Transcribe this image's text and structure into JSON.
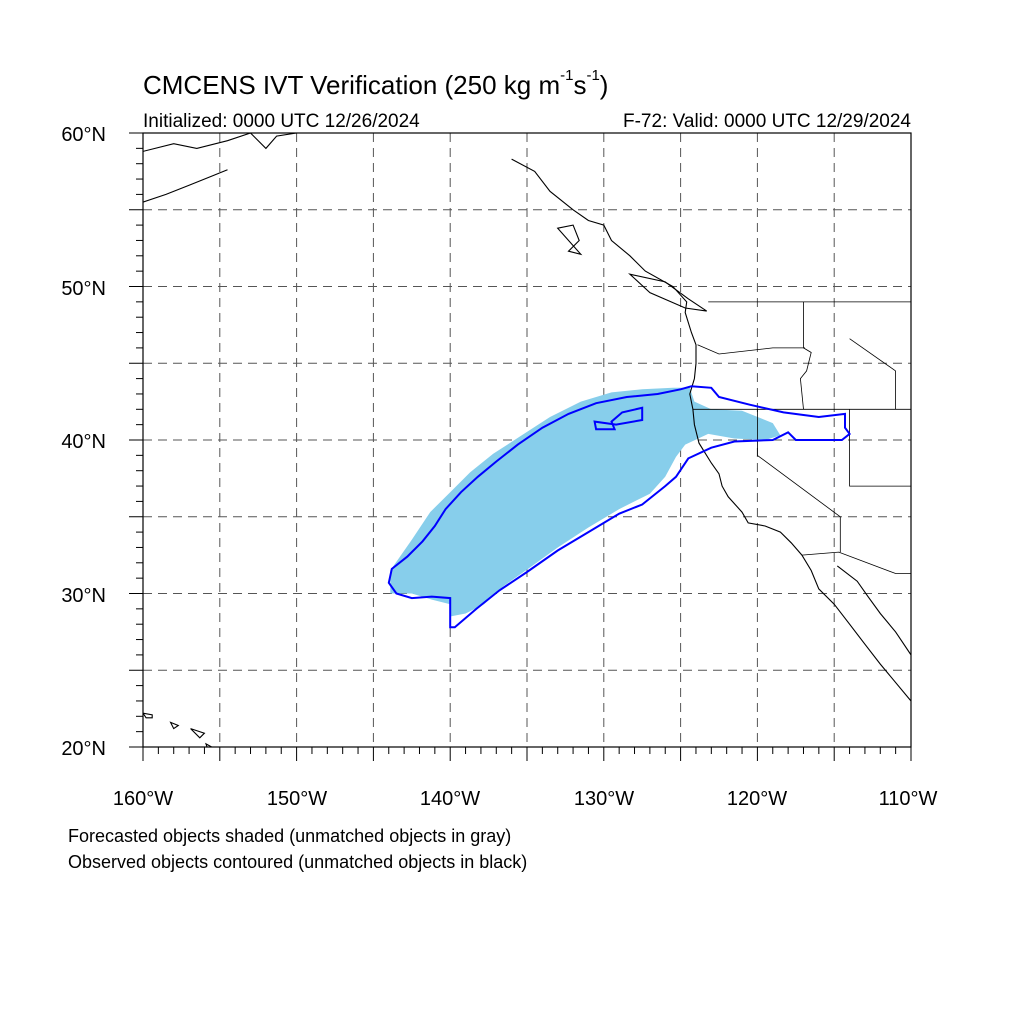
{
  "title": {
    "prefix": "CMCENS IVT Verification (250 kg m",
    "exp1": "-1",
    "mid": "s",
    "exp2": "-1",
    "suffix": ")"
  },
  "initialized": "Initialized: 0000 UTC 12/26/2024",
  "valid": "F-72: Valid: 0000 UTC 12/29/2024",
  "lat_labels": [
    "60°N",
    "50°N",
    "40°N",
    "30°N",
    "20°N"
  ],
  "lon_labels": [
    "160°W",
    "150°W",
    "140°W",
    "130°W",
    "120°W",
    "110°W"
  ],
  "legend": {
    "forecast": "Forecasted objects shaded (unmatched objects in gray)",
    "observed": "Observed objects contoured (unmatched objects in black)"
  },
  "map": {
    "lon_range": [
      -160,
      -110
    ],
    "lat_range": [
      20,
      60
    ],
    "grid_step_deg": 5,
    "colors": {
      "forecast_fill": "#87ceeb",
      "observed_contour": "#0000ff",
      "coastline": "#000000",
      "grid": "#555555"
    }
  },
  "objects": {
    "forecast": {
      "label": "matched forecast IVT object",
      "polygon": [
        [
          -143.9,
          30.0
        ],
        [
          -143.9,
          31.5
        ],
        [
          -142.5,
          33.5
        ],
        [
          -141.3,
          35.3
        ],
        [
          -140.0,
          36.6
        ],
        [
          -138.7,
          37.9
        ],
        [
          -137.2,
          39.1
        ],
        [
          -135.5,
          40.2
        ],
        [
          -133.5,
          41.5
        ],
        [
          -131.5,
          42.5
        ],
        [
          -129.5,
          43.1
        ],
        [
          -127.5,
          43.3
        ],
        [
          -125.5,
          43.4
        ],
        [
          -124.4,
          43.4
        ],
        [
          -124.1,
          42.5
        ],
        [
          -123.0,
          42.0
        ],
        [
          -121.0,
          41.9
        ],
        [
          -119.0,
          41.1
        ],
        [
          -118.5,
          40.3
        ],
        [
          -119.5,
          40.0
        ],
        [
          -121.5,
          40.1
        ],
        [
          -123.2,
          40.4
        ],
        [
          -124.7,
          39.7
        ],
        [
          -125.3,
          38.9
        ],
        [
          -126.0,
          37.6
        ],
        [
          -127.0,
          36.5
        ],
        [
          -129.0,
          35.5
        ],
        [
          -131.0,
          34.3
        ],
        [
          -133.0,
          33.0
        ],
        [
          -134.8,
          31.7
        ],
        [
          -136.5,
          30.5
        ],
        [
          -137.8,
          29.3
        ],
        [
          -139.0,
          28.7
        ],
        [
          -140.0,
          28.5
        ],
        [
          -140.0,
          29.3
        ],
        [
          -141.2,
          29.6
        ],
        [
          -142.5,
          30.0
        ]
      ]
    },
    "observed": {
      "label": "matched observed IVT object",
      "polygon": [
        [
          -144.0,
          30.7
        ],
        [
          -143.8,
          31.6
        ],
        [
          -142.8,
          32.4
        ],
        [
          -141.8,
          33.4
        ],
        [
          -141.0,
          34.4
        ],
        [
          -140.3,
          35.5
        ],
        [
          -139.3,
          36.6
        ],
        [
          -138.2,
          37.6
        ],
        [
          -137.0,
          38.6
        ],
        [
          -135.6,
          39.7
        ],
        [
          -134.0,
          40.8
        ],
        [
          -132.3,
          41.7
        ],
        [
          -130.5,
          42.4
        ],
        [
          -128.5,
          42.8
        ],
        [
          -126.5,
          43.0
        ],
        [
          -125.0,
          43.3
        ],
        [
          -124.3,
          43.5
        ],
        [
          -123.0,
          43.4
        ],
        [
          -122.5,
          42.8
        ],
        [
          -120.5,
          42.3
        ],
        [
          -118.3,
          41.8
        ],
        [
          -116.0,
          41.5
        ],
        [
          -114.3,
          41.7
        ],
        [
          -114.3,
          40.8
        ],
        [
          -114.0,
          40.4
        ],
        [
          -114.5,
          40.0
        ],
        [
          -117.5,
          40.0
        ],
        [
          -118.0,
          40.5
        ],
        [
          -119.0,
          40.0
        ],
        [
          -121.5,
          39.9
        ],
        [
          -123.0,
          39.5
        ],
        [
          -124.5,
          38.8
        ],
        [
          -125.3,
          37.6
        ],
        [
          -126.0,
          37.0
        ],
        [
          -127.5,
          35.8
        ],
        [
          -129.0,
          35.2
        ],
        [
          -131.0,
          34.0
        ],
        [
          -133.0,
          32.8
        ],
        [
          -135.0,
          31.4
        ],
        [
          -136.8,
          30.2
        ],
        [
          -138.3,
          29.0
        ],
        [
          -139.7,
          27.8
        ],
        [
          -140.0,
          27.8
        ],
        [
          -140.0,
          29.7
        ],
        [
          -141.2,
          29.8
        ],
        [
          -142.5,
          29.7
        ],
        [
          -143.5,
          30.0
        ]
      ],
      "hole": [
        [
          -130.5,
          40.7
        ],
        [
          -129.3,
          40.7
        ],
        [
          -129.5,
          41.2
        ],
        [
          -128.8,
          41.8
        ],
        [
          -127.5,
          42.1
        ],
        [
          -127.5,
          41.3
        ],
        [
          -129.2,
          41.0
        ],
        [
          -130.6,
          41.2
        ]
      ]
    }
  },
  "geography": {
    "west_coast": [
      [
        -136.0,
        58.3
      ],
      [
        -134.5,
        57.5
      ],
      [
        -133.5,
        56.2
      ],
      [
        -132.0,
        55.0
      ],
      [
        -131.0,
        54.3
      ],
      [
        -130.0,
        54.0
      ],
      [
        -129.5,
        53.0
      ],
      [
        -128.3,
        52.0
      ],
      [
        -127.3,
        51.0
      ],
      [
        -125.5,
        50.0
      ],
      [
        -124.6,
        49.0
      ],
      [
        -124.7,
        48.3
      ],
      [
        -124.3,
        47.0
      ],
      [
        -124.0,
        46.2
      ],
      [
        -124.0,
        45.0
      ],
      [
        -124.1,
        44.0
      ],
      [
        -124.4,
        43.0
      ],
      [
        -124.2,
        42.0
      ],
      [
        -124.1,
        41.0
      ],
      [
        -123.8,
        39.8
      ],
      [
        -123.0,
        38.5
      ],
      [
        -122.5,
        37.8
      ],
      [
        -122.3,
        37.0
      ],
      [
        -121.9,
        36.3
      ],
      [
        -121.0,
        35.3
      ],
      [
        -120.6,
        34.6
      ],
      [
        -119.5,
        34.4
      ],
      [
        -118.5,
        34.0
      ],
      [
        -117.8,
        33.3
      ],
      [
        -117.1,
        32.5
      ],
      [
        -116.5,
        31.5
      ],
      [
        -116.0,
        30.3
      ],
      [
        -115.0,
        29.3
      ],
      [
        -114.0,
        28.0
      ],
      [
        -113.0,
        26.7
      ],
      [
        -112.0,
        25.4
      ],
      [
        -110.0,
        23.0
      ]
    ],
    "alaska_coast": [
      [
        -160.0,
        58.8
      ],
      [
        -158.0,
        59.3
      ],
      [
        -156.5,
        59.0
      ],
      [
        -154.5,
        59.5
      ],
      [
        -153.0,
        60.0
      ],
      [
        -152.0,
        59.0
      ],
      [
        -151.3,
        59.8
      ],
      [
        -150.0,
        60.0
      ],
      [
        -148.0,
        60.0
      ],
      [
        -146.0,
        60.0
      ]
    ],
    "alaska_south": [
      [
        -160.0,
        55.5
      ],
      [
        -158.5,
        56.0
      ],
      [
        -157.0,
        56.6
      ],
      [
        -155.5,
        57.2
      ],
      [
        -154.5,
        57.6
      ]
    ],
    "gulf_california": [
      [
        -114.8,
        31.8
      ],
      [
        -113.5,
        30.8
      ],
      [
        -112.8,
        29.8
      ],
      [
        -112.0,
        28.7
      ],
      [
        -111.0,
        27.5
      ],
      [
        -110.0,
        26.0
      ]
    ],
    "islands": [
      [
        [
          -160.0,
          22.2
        ],
        [
          -159.4,
          22.1
        ],
        [
          -159.4,
          21.9
        ],
        [
          -159.8,
          21.9
        ]
      ],
      [
        [
          -158.2,
          21.6
        ],
        [
          -157.7,
          21.4
        ],
        [
          -158.0,
          21.2
        ]
      ],
      [
        [
          -156.9,
          21.2
        ],
        [
          -156.0,
          20.9
        ],
        [
          -156.3,
          20.6
        ]
      ],
      [
        [
          -155.9,
          20.2
        ],
        [
          -154.8,
          19.6
        ],
        [
          -155.5,
          19.0
        ]
      ],
      [
        [
          -133.0,
          53.8
        ],
        [
          -132.0,
          54.0
        ],
        [
          -131.6,
          53.0
        ],
        [
          -132.3,
          52.3
        ],
        [
          -131.5,
          52.1
        ]
      ],
      [
        [
          -128.3,
          50.8
        ],
        [
          -126.0,
          50.3
        ],
        [
          -124.5,
          49.2
        ],
        [
          -123.3,
          48.4
        ],
        [
          -124.7,
          48.6
        ],
        [
          -127.0,
          49.6
        ]
      ]
    ],
    "borders": [
      [
        [
          -123.2,
          49.0
        ],
        [
          -110.0,
          49.0
        ]
      ],
      [
        [
          -117.0,
          49.0
        ],
        [
          -117.0,
          46.0
        ],
        [
          -116.5,
          45.7
        ],
        [
          -116.8,
          44.5
        ],
        [
          -117.2,
          44.0
        ],
        [
          -117.0,
          42.0
        ]
      ],
      [
        [
          -124.2,
          42.0
        ],
        [
          -110.0,
          42.0
        ]
      ],
      [
        [
          -120.0,
          42.0
        ],
        [
          -120.0,
          39.0
        ],
        [
          -114.6,
          35.0
        ],
        [
          -114.6,
          32.7
        ]
      ],
      [
        [
          -117.1,
          32.5
        ],
        [
          -114.7,
          32.7
        ],
        [
          -111.0,
          31.3
        ],
        [
          -110.0,
          31.3
        ]
      ],
      [
        [
          -123.9,
          46.2
        ],
        [
          -122.5,
          45.6
        ],
        [
          -119.0,
          46.0
        ],
        [
          -116.9,
          46.0
        ]
      ],
      [
        [
          -114.0,
          42.0
        ],
        [
          -114.0,
          37.0
        ],
        [
          -110.0,
          37.0
        ]
      ],
      [
        [
          -111.0,
          44.5
        ],
        [
          -111.0,
          42.0
        ]
      ],
      [
        [
          -114.0,
          46.6
        ],
        [
          -111.0,
          44.5
        ]
      ]
    ]
  }
}
